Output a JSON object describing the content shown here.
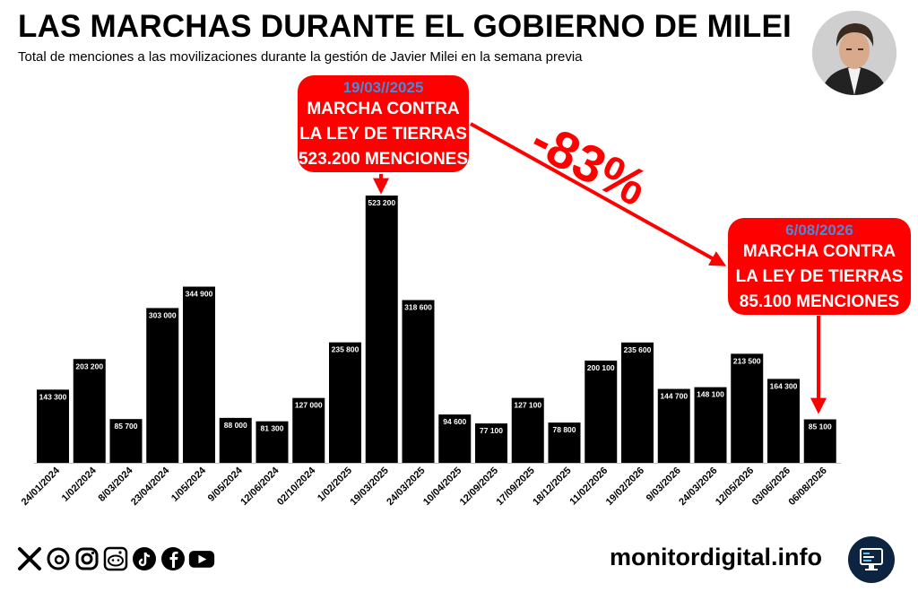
{
  "header": {
    "title": "LAS MARCHAS DURANTE EL GOBIERNO DE MILEI",
    "subtitle": "Total de menciones a las movilizaciones durante la gestión de Javier Milei en la semana previa"
  },
  "chart_data": {
    "type": "bar",
    "categories": [
      "24/01/2024",
      "1/02/2024",
      "8/03/2024",
      "23/04/2024",
      "1/05/2024",
      "9/05/2024",
      "12/06/2024",
      "02/10/2024",
      "1/02/2025",
      "19/03/2025",
      "24/03/2025",
      "10/04/2025",
      "12/09/2025",
      "17/09/2025",
      "18/12/2025",
      "11/02/2026",
      "19/02/2026",
      "9/03/2026",
      "24/03/2026",
      "12/05/2026",
      "03/06/2026",
      "06/08/2026"
    ],
    "values": [
      143300,
      203200,
      85700,
      303000,
      344900,
      88000,
      81300,
      127000,
      235800,
      523200,
      318600,
      94600,
      77100,
      127100,
      78800,
      200100,
      235600,
      144700,
      148100,
      213500,
      164300,
      85100
    ],
    "value_labels": [
      "143 300",
      "203 200",
      "85 700",
      "303 000",
      "344 900",
      "88 000",
      "81 300",
      "127 000",
      "235 800",
      "523 200",
      "318 600",
      "94 600",
      "77 100",
      "127 100",
      "78 800",
      "200 100",
      "235 600",
      "144 700",
      "148 100",
      "213 500",
      "164 300",
      "85 100"
    ],
    "bar_color": "#000000",
    "ylim": [
      0,
      523200
    ],
    "grid": false,
    "title": "",
    "xlabel": "",
    "ylabel": ""
  },
  "annotations": {
    "callout_1": {
      "date": "19/03//2025",
      "line1": "MARCHA CONTRA",
      "line2": "LA LEY DE TIERRAS",
      "line3": "523.200 MENCIONES"
    },
    "callout_2": {
      "date": "6/08/2026",
      "line1": "MARCHA CONTRA",
      "line2": "LA LEY DE TIERRAS",
      "line3": "85.100 MENCIONES"
    },
    "change": "-83%"
  },
  "colors": {
    "accent": "#ff0000",
    "date_text": "#4f86d6",
    "bars": "#000000"
  },
  "footer": {
    "brand": "monitordigital.info",
    "social_icons": [
      "x-icon",
      "threads-icon",
      "instagram-icon",
      "reddit-icon",
      "tiktok-icon",
      "facebook-icon",
      "youtube-icon"
    ]
  }
}
